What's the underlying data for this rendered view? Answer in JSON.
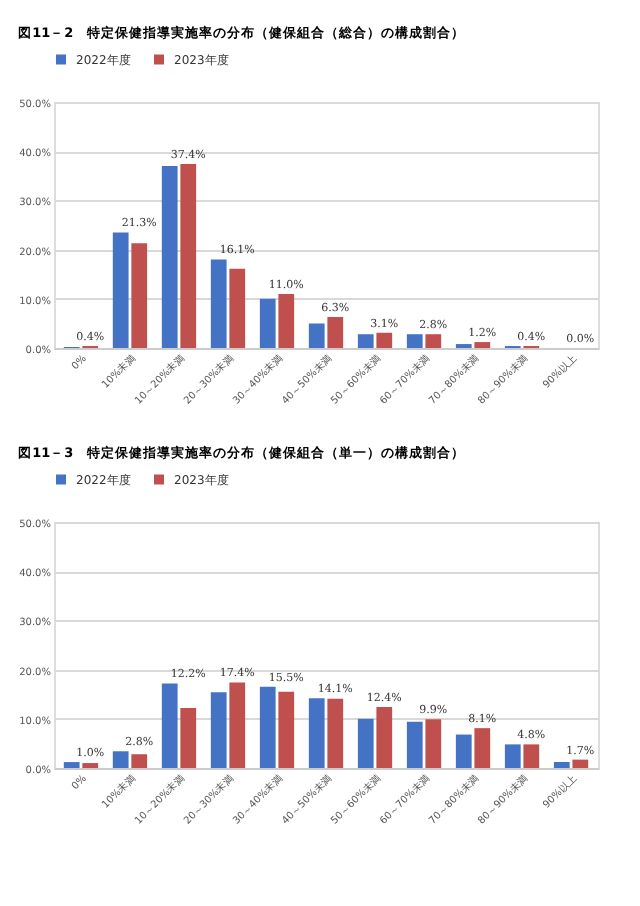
{
  "chart_data": [
    {
      "type": "bar",
      "title": "図11－2　特定保健指導実施率の分布（健保組合（総合）の構成割合）",
      "categories": [
        "0%",
        "10%未満",
        "10～20%未満",
        "20～30%未満",
        "30～40%未満",
        "40～50%未満",
        "50～60%未満",
        "60～70%未満",
        "70～80%未満",
        "80～90%未満",
        "90%以上"
      ],
      "series": [
        {
          "name": "2022年度",
          "color": "#4472c4",
          "values": [
            0.2,
            23.5,
            37.0,
            18.0,
            10.0,
            5.0,
            2.8,
            2.8,
            0.8,
            0.4,
            0.0
          ]
        },
        {
          "name": "2023年度",
          "color": "#c0504d",
          "values": [
            0.4,
            21.3,
            37.4,
            16.1,
            11.0,
            6.3,
            3.1,
            2.8,
            1.2,
            0.4,
            0.0
          ],
          "value_labels": [
            "0.4%",
            "21.3%",
            "37.4%",
            "16.1%",
            "11.0%",
            "6.3%",
            "3.1%",
            "2.8%",
            "1.2%",
            "0.4%",
            "0.0%"
          ]
        }
      ],
      "ylim": [
        0,
        50
      ],
      "yticks": [
        {
          "value": 0,
          "label": "0.0%"
        },
        {
          "value": 10,
          "label": "10.0%"
        },
        {
          "value": 20,
          "label": "20.0%"
        },
        {
          "value": 30,
          "label": "30.0%"
        },
        {
          "value": 40,
          "label": "40.0%"
        },
        {
          "value": 50,
          "label": "50.0%"
        }
      ],
      "grid": "y",
      "legend": "top"
    },
    {
      "type": "bar",
      "title": "図11－3　特定保健指導実施率の分布（健保組合（単一）の構成割合）",
      "categories": [
        "0%",
        "10%未満",
        "10～20%未満",
        "20～30%未満",
        "30～40%未満",
        "40～50%未満",
        "50～60%未満",
        "60～70%未満",
        "70～80%未満",
        "80～90%未満",
        "90%以上"
      ],
      "series": [
        {
          "name": "2022年度",
          "color": "#4472c4",
          "values": [
            1.2,
            3.4,
            17.2,
            15.4,
            16.5,
            14.2,
            10.0,
            9.4,
            6.8,
            4.8,
            1.2
          ]
        },
        {
          "name": "2023年度",
          "color": "#c0504d",
          "values": [
            1.0,
            2.8,
            12.2,
            17.4,
            15.5,
            14.1,
            12.4,
            9.9,
            8.1,
            4.8,
            1.7
          ],
          "value_labels": [
            "1.0%",
            "2.8%",
            "12.2%",
            "17.4%",
            "15.5%",
            "14.1%",
            "12.4%",
            "9.9%",
            "8.1%",
            "4.8%",
            "1.7%"
          ]
        }
      ],
      "ylim": [
        0,
        50
      ],
      "yticks": [
        {
          "value": 0,
          "label": "0.0%"
        },
        {
          "value": 10,
          "label": "10.0%"
        },
        {
          "value": 20,
          "label": "20.0%"
        },
        {
          "value": 30,
          "label": "30.0%"
        },
        {
          "value": 40,
          "label": "40.0%"
        },
        {
          "value": 50,
          "label": "50.0%"
        }
      ],
      "grid": "y",
      "legend": "top"
    }
  ]
}
